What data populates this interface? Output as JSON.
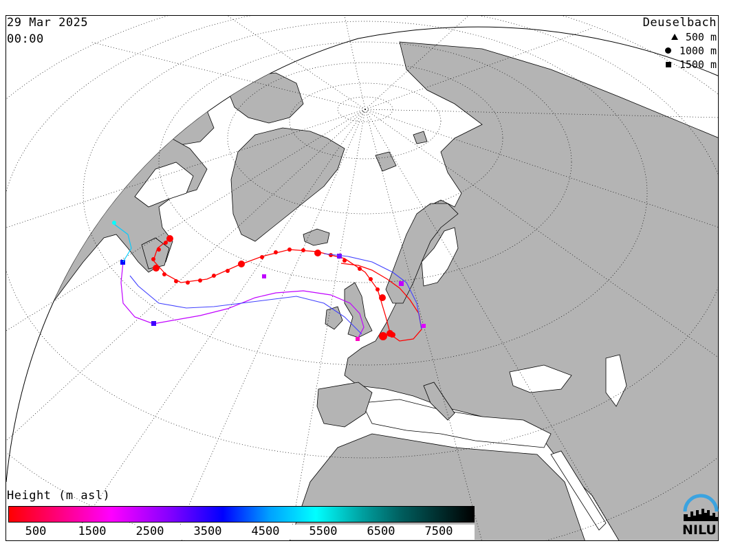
{
  "header": {
    "date": "29 Mar 2025",
    "time": "00:00",
    "station": "Deuselbach"
  },
  "legend": {
    "items": [
      {
        "symbol": "triangle",
        "label": "500 m"
      },
      {
        "symbol": "circle",
        "label": "1000 m"
      },
      {
        "symbol": "square",
        "label": "1500 m"
      }
    ]
  },
  "colorbar": {
    "title": "Height (m asl)",
    "ticks": [
      "500",
      "1500",
      "2500",
      "3500",
      "4500",
      "5500",
      "6500",
      "7500"
    ],
    "colors": [
      "#ff0000",
      "#ff00ff",
      "#8000ff",
      "#0000ff",
      "#00a0ff",
      "#00ffff",
      "#00a0a0",
      "#000000"
    ]
  },
  "map": {
    "land_color": "#b4b4b4",
    "ocean_color": "#ffffff",
    "trajectory_colors": {
      "low": "#ff0000",
      "mid": "#c000ff",
      "high": "#0000ff",
      "top": "#00ffff"
    }
  },
  "logo": {
    "text": "NILU",
    "arc_color": "#3ba3e0"
  }
}
